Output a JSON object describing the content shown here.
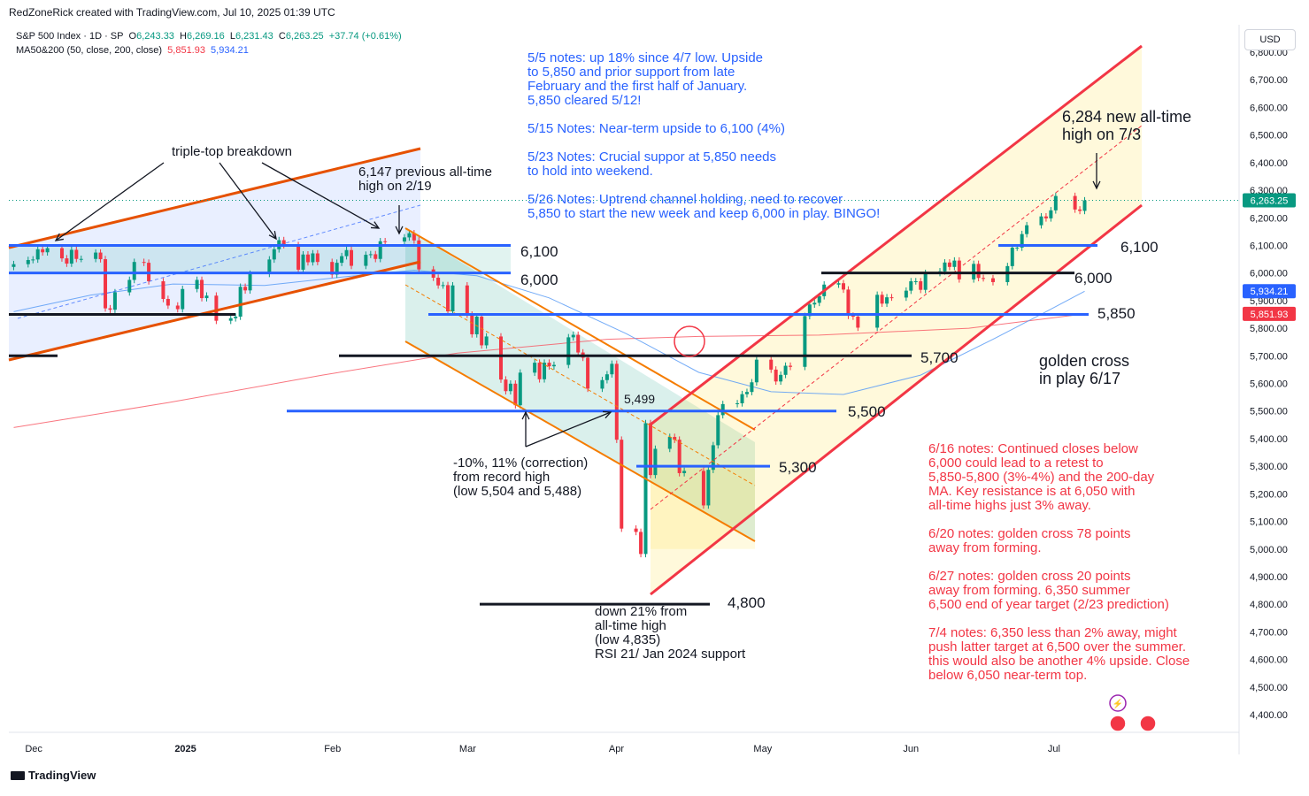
{
  "header": {
    "credit": "RedZoneRick created with TradingView.com, Jul 10, 2025 01:39 UTC",
    "brand": "TradingView",
    "currency": "USD"
  },
  "legend": {
    "symbol": "S&P 500 Index · 1D · SP",
    "open_label": "O",
    "open": "6,243.33",
    "high_label": "H",
    "high": "6,269.16",
    "low_label": "L",
    "low": "6,231.43",
    "close_label": "C",
    "close": "6,263.25",
    "change": "+37.74 (+0.61%)",
    "ma_label": "MA50&200 (50, close, 200, close)",
    "ma1": "5,851.93",
    "ma2": "5,934.21"
  },
  "colors": {
    "up": "#089981",
    "down": "#f23645",
    "ma50": "#5b9cf6",
    "ma200": "#f7525f",
    "blue_line": "#2962ff",
    "orange": "#f57c00",
    "deep_orange": "#e65100",
    "red_channel": "#f23645",
    "note_blue": "#2962ff",
    "note_red": "#f23645"
  },
  "chart_data": {
    "type": "candlestick",
    "symbol": "S&P 500 Index",
    "timeframe": "1D",
    "ylim": [
      4350,
      6870
    ],
    "y_ticks": [
      4400,
      4500,
      4600,
      4700,
      4800,
      4900,
      5000,
      5100,
      5200,
      5300,
      5400,
      5500,
      5600,
      5700,
      5800,
      5900,
      6000,
      6100,
      6200,
      6300,
      6400,
      6500,
      6600,
      6700,
      6800
    ],
    "y_tick_labels": [
      "4,400.00",
      "4,500.00",
      "4,600.00",
      "4,700.00",
      "4,800.00",
      "4,900.00",
      "5,000.00",
      "5,100.00",
      "5,200.00",
      "5,300.00",
      "5,400.00",
      "5,500.00",
      "5,600.00",
      "5,700.00",
      "5,800.00",
      "5,900.00",
      "6,000.00",
      "6,100.00",
      "6,200.00",
      "6,300.00",
      "6,400.00",
      "6,500.00",
      "6,600.00",
      "6,700.00",
      "6,800.00"
    ],
    "x_labels": [
      {
        "label": "Dec",
        "date": "2024-12-01"
      },
      {
        "label": "2025",
        "date": "2025-01-01"
      },
      {
        "label": "Feb",
        "date": "2025-02-01"
      },
      {
        "label": "Mar",
        "date": "2025-03-01"
      },
      {
        "label": "Apr",
        "date": "2025-04-01"
      },
      {
        "label": "May",
        "date": "2025-05-01"
      },
      {
        "label": "Jun",
        "date": "2025-06-01"
      },
      {
        "label": "Jul",
        "date": "2025-07-01"
      }
    ],
    "x_start": "2024-11-28",
    "x_end": "2025-07-30",
    "closes": [
      [
        "2024-11-29",
        6032
      ],
      [
        "2024-12-02",
        6047
      ],
      [
        "2024-12-03",
        6049
      ],
      [
        "2024-12-04",
        6086
      ],
      [
        "2024-12-05",
        6075
      ],
      [
        "2024-12-06",
        6090
      ],
      [
        "2024-12-09",
        6053
      ],
      [
        "2024-12-10",
        6034
      ],
      [
        "2024-12-11",
        6084
      ],
      [
        "2024-12-12",
        6051
      ],
      [
        "2024-12-13",
        6051
      ],
      [
        "2024-12-16",
        6074
      ],
      [
        "2024-12-17",
        6050
      ],
      [
        "2024-12-18",
        5872
      ],
      [
        "2024-12-19",
        5867
      ],
      [
        "2024-12-20",
        5930
      ],
      [
        "2024-12-23",
        5975
      ],
      [
        "2024-12-24",
        6040
      ],
      [
        "2024-12-26",
        6037
      ],
      [
        "2024-12-27",
        5970
      ],
      [
        "2024-12-30",
        5906
      ],
      [
        "2024-12-31",
        5882
      ],
      [
        "2025-01-02",
        5869
      ],
      [
        "2025-01-03",
        5942
      ],
      [
        "2025-01-06",
        5975
      ],
      [
        "2025-01-07",
        5909
      ],
      [
        "2025-01-08",
        5918
      ],
      [
        "2025-01-10",
        5827
      ],
      [
        "2025-01-13",
        5836
      ],
      [
        "2025-01-14",
        5842
      ],
      [
        "2025-01-15",
        5950
      ],
      [
        "2025-01-16",
        5937
      ],
      [
        "2025-01-17",
        5997
      ],
      [
        "2025-01-21",
        6049
      ],
      [
        "2025-01-22",
        6086
      ],
      [
        "2025-01-23",
        6119
      ],
      [
        "2025-01-24",
        6101
      ],
      [
        "2025-01-27",
        6012
      ],
      [
        "2025-01-28",
        6067
      ],
      [
        "2025-01-29",
        6039
      ],
      [
        "2025-01-30",
        6071
      ],
      [
        "2025-01-31",
        6040
      ],
      [
        "2025-02-03",
        5994
      ],
      [
        "2025-02-04",
        6037
      ],
      [
        "2025-02-05",
        6061
      ],
      [
        "2025-02-06",
        6083
      ],
      [
        "2025-02-07",
        6026
      ],
      [
        "2025-02-10",
        6066
      ],
      [
        "2025-02-11",
        6068
      ],
      [
        "2025-02-12",
        6051
      ],
      [
        "2025-02-13",
        6115
      ],
      [
        "2025-02-14",
        6114
      ],
      [
        "2025-02-18",
        6129
      ],
      [
        "2025-02-19",
        6144
      ],
      [
        "2025-02-20",
        6118
      ],
      [
        "2025-02-21",
        6013
      ],
      [
        "2025-02-24",
        5983
      ],
      [
        "2025-02-25",
        5955
      ],
      [
        "2025-02-26",
        5956
      ],
      [
        "2025-02-27",
        5861
      ],
      [
        "2025-02-28",
        5955
      ],
      [
        "2025-03-03",
        5849
      ],
      [
        "2025-03-04",
        5778
      ],
      [
        "2025-03-05",
        5842
      ],
      [
        "2025-03-06",
        5738
      ],
      [
        "2025-03-07",
        5770
      ],
      [
        "2025-03-10",
        5614
      ],
      [
        "2025-03-11",
        5572
      ],
      [
        "2025-03-12",
        5599
      ],
      [
        "2025-03-13",
        5521
      ],
      [
        "2025-03-14",
        5639
      ],
      [
        "2025-03-17",
        5675
      ],
      [
        "2025-03-18",
        5615
      ],
      [
        "2025-03-19",
        5675
      ],
      [
        "2025-03-20",
        5662
      ],
      [
        "2025-03-21",
        5667
      ],
      [
        "2025-03-24",
        5767
      ],
      [
        "2025-03-25",
        5776
      ],
      [
        "2025-03-26",
        5712
      ],
      [
        "2025-03-27",
        5693
      ],
      [
        "2025-03-28",
        5581
      ],
      [
        "2025-03-31",
        5612
      ],
      [
        "2025-04-01",
        5633
      ],
      [
        "2025-04-02",
        5671
      ],
      [
        "2025-04-03",
        5396
      ],
      [
        "2025-04-04",
        5074
      ],
      [
        "2025-04-07",
        5062
      ],
      [
        "2025-04-08",
        4982
      ],
      [
        "2025-04-09",
        5456
      ],
      [
        "2025-04-10",
        5268
      ],
      [
        "2025-04-11",
        5363
      ],
      [
        "2025-04-14",
        5406
      ],
      [
        "2025-04-15",
        5396
      ],
      [
        "2025-04-16",
        5275
      ],
      [
        "2025-04-17",
        5283
      ],
      [
        "2025-04-21",
        5158
      ],
      [
        "2025-04-22",
        5287
      ],
      [
        "2025-04-23",
        5376
      ],
      [
        "2025-04-24",
        5485
      ],
      [
        "2025-04-25",
        5525
      ],
      [
        "2025-04-28",
        5528
      ],
      [
        "2025-04-29",
        5561
      ],
      [
        "2025-04-30",
        5569
      ],
      [
        "2025-05-01",
        5604
      ],
      [
        "2025-05-02",
        5686
      ],
      [
        "2025-05-05",
        5650
      ],
      [
        "2025-05-06",
        5607
      ],
      [
        "2025-05-07",
        5631
      ],
      [
        "2025-05-08",
        5664
      ],
      [
        "2025-05-09",
        5660
      ],
      [
        "2025-05-12",
        5844
      ],
      [
        "2025-05-13",
        5886
      ],
      [
        "2025-05-14",
        5892
      ],
      [
        "2025-05-15",
        5916
      ],
      [
        "2025-05-16",
        5958
      ],
      [
        "2025-05-19",
        5963
      ],
      [
        "2025-05-20",
        5940
      ],
      [
        "2025-05-21",
        5845
      ],
      [
        "2025-05-22",
        5842
      ],
      [
        "2025-05-23",
        5802
      ],
      [
        "2025-05-27",
        5921
      ],
      [
        "2025-05-28",
        5889
      ],
      [
        "2025-05-29",
        5912
      ],
      [
        "2025-05-30",
        5911
      ],
      [
        "2025-06-02",
        5936
      ],
      [
        "2025-06-03",
        5970
      ],
      [
        "2025-06-04",
        5970
      ],
      [
        "2025-06-05",
        5939
      ],
      [
        "2025-06-06",
        6000
      ],
      [
        "2025-06-09",
        6006
      ],
      [
        "2025-06-10",
        6038
      ],
      [
        "2025-06-11",
        6022
      ],
      [
        "2025-06-12",
        6045
      ],
      [
        "2025-06-13",
        5977
      ],
      [
        "2025-06-16",
        6033
      ],
      [
        "2025-06-17",
        5982
      ],
      [
        "2025-06-18",
        5981
      ],
      [
        "2025-06-20",
        5967
      ],
      [
        "2025-06-23",
        6025
      ],
      [
        "2025-06-24",
        6092
      ],
      [
        "2025-06-25",
        6092
      ],
      [
        "2025-06-26",
        6141
      ],
      [
        "2025-06-27",
        6173
      ],
      [
        "2025-06-30",
        6205
      ],
      [
        "2025-07-01",
        6198
      ],
      [
        "2025-07-02",
        6227
      ],
      [
        "2025-07-03",
        6279
      ],
      [
        "2025-07-07",
        6230
      ],
      [
        "2025-07-08",
        6225
      ],
      [
        "2025-07-09",
        6263
      ]
    ],
    "ma50": [
      [
        "2024-11-29",
        5860
      ],
      [
        "2024-12-15",
        5920
      ],
      [
        "2025-01-01",
        5960
      ],
      [
        "2025-01-20",
        5955
      ],
      [
        "2025-02-05",
        5985
      ],
      [
        "2025-02-20",
        6010
      ],
      [
        "2025-03-05",
        5990
      ],
      [
        "2025-03-20",
        5910
      ],
      [
        "2025-04-05",
        5780
      ],
      [
        "2025-04-20",
        5640
      ],
      [
        "2025-05-05",
        5570
      ],
      [
        "2025-05-20",
        5560
      ],
      [
        "2025-06-05",
        5630
      ],
      [
        "2025-06-20",
        5760
      ],
      [
        "2025-07-01",
        5860
      ],
      [
        "2025-07-09",
        5934
      ]
    ],
    "ma200": [
      [
        "2024-11-29",
        5440
      ],
      [
        "2024-12-31",
        5530
      ],
      [
        "2025-02-01",
        5630
      ],
      [
        "2025-03-01",
        5710
      ],
      [
        "2025-04-01",
        5760
      ],
      [
        "2025-04-20",
        5770
      ],
      [
        "2025-05-15",
        5775
      ],
      [
        "2025-06-15",
        5800
      ],
      [
        "2025-07-09",
        5852
      ]
    ],
    "horizontal_levels": [
      {
        "value": 6100,
        "label": "6,100"
      },
      {
        "value": 6000,
        "label": "6,000"
      },
      {
        "value": 5850,
        "label": "5,850"
      },
      {
        "value": 5700,
        "label": "5,700"
      },
      {
        "value": 5500,
        "label": "5,500"
      },
      {
        "value": 5300,
        "label": "5,300"
      },
      {
        "value": 4800,
        "label": "4,800"
      }
    ],
    "price_tags": [
      {
        "value": 6263.25,
        "label": "6,263.25",
        "color": "#089981"
      },
      {
        "value": 5934.21,
        "label": "5,934.21",
        "color": "#2962ff"
      },
      {
        "value": 5851.93,
        "label": "5,851.93",
        "color": "#f23645"
      }
    ],
    "annotations": {
      "triple_top": "triple-top breakdown",
      "prev_ath": [
        "6,147 previous all-time",
        "high on 2/19"
      ],
      "new_ath": [
        "6,284 new all-time",
        "high on 7/3"
      ],
      "correction": [
        "-10%, 11% (correction)",
        "from record high",
        "(low 5,504 and 5,488)"
      ],
      "low_5499": "5,499",
      "down21": [
        "down 21% from",
        "all-time high",
        "(low 4,835)",
        "RSI 21/ Jan 2024 support"
      ],
      "golden_cross": [
        "golden cross",
        "in play 6/17"
      ]
    },
    "notes_blue": [
      [
        "5/5 notes: up 18% since 4/7 low. Upside",
        "to 5,850 and prior support from late",
        "February and the first half of January.",
        "5,850 cleared 5/12!"
      ],
      [
        "5/15 Notes: Near-term upside to 6,100 (4%)"
      ],
      [
        "5/23 Notes: Crucial suppor at 5,850 needs",
        "to hold into weekend."
      ],
      [
        "5/26 Notes: Uptrend channel holding, need to recover",
        "5,850 to start the new week and keep 6,000 in play. BINGO!"
      ]
    ],
    "notes_red": [
      [
        "6/16 notes: Continued closes below",
        "6,000 could lead to a retest to",
        "5,850-5,800 (3%-4%) and the 200-day",
        "MA. Key resistance is at 6,050 with",
        "all-time highs just 3% away."
      ],
      [
        "6/20 notes: golden cross 78 points",
        "away from forming."
      ],
      [
        "6/27 notes: golden cross 20 points",
        "away from forming. 6,350 summer",
        "6,500 end of year target (2/23 prediction)"
      ],
      [
        "7/4 notes: 6,350 less than 2% away, might",
        "push latter target at 6,500 over the summer.",
        "this would also be another 4% upside. Close",
        "below 6,050 near-term top."
      ]
    ]
  }
}
